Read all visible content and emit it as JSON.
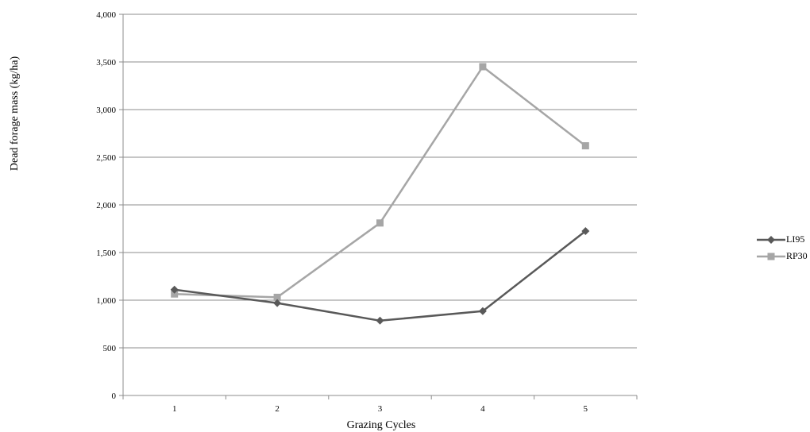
{
  "chart_data": {
    "type": "line",
    "xlabel": "Grazing Cycles",
    "ylabel": "Dead forage mass (kg/ha)",
    "categories": [
      "1",
      "2",
      "3",
      "4",
      "5"
    ],
    "ylim": [
      0,
      4000
    ],
    "yticks": [
      "0",
      "500",
      "1,000",
      "1,500",
      "2,000",
      "2,500",
      "3,000",
      "3,500",
      "4,000"
    ],
    "grid": "horizontal",
    "legend": "right",
    "series": [
      {
        "name": "LI95",
        "values": [
          1110,
          970,
          785,
          885,
          1725
        ],
        "color": "#595959",
        "marker": "diamond"
      },
      {
        "name": "RP30",
        "values": [
          1065,
          1030,
          1810,
          3450,
          2620
        ],
        "color": "#a6a6a6",
        "marker": "square"
      }
    ]
  }
}
